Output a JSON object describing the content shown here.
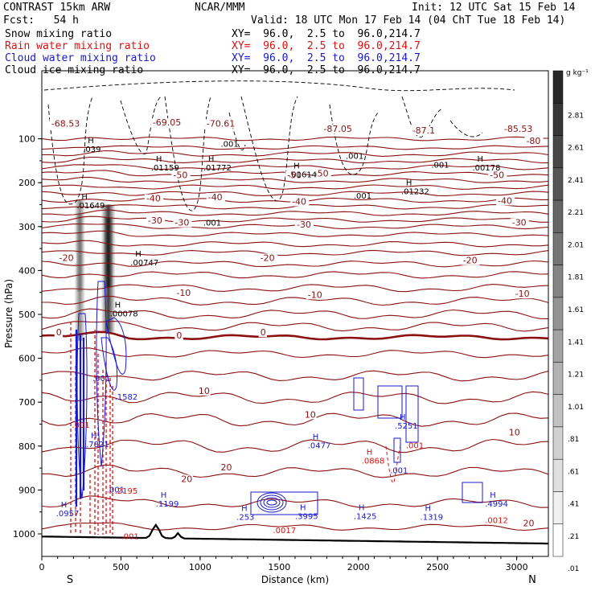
{
  "header": {
    "model": "CONTRAST 15km ARW",
    "forecast": "Fcst:   54 h",
    "org": "NCAR/MMM",
    "init": "Init: 12 UTC Sat 15 Feb 14",
    "valid": "Valid: 18 UTC Mon 17 Feb 14 (04 ChT Tue 18 Feb 14)"
  },
  "fields": [
    {
      "label": "Snow mixing ratio",
      "xy": "XY=  96.0,  2.5 to  96.0,214.7",
      "color": "#000000"
    },
    {
      "label": "Rain water mixing ratio",
      "xy": "XY=  96.0,  2.5 to  96.0,214.7",
      "color": "#e01010"
    },
    {
      "label": "Cloud water mixing ratio",
      "xy": "XY=  96.0,  2.5 to  96.0,214.7",
      "color": "#1818d0"
    },
    {
      "label": "Cloud ice mixing ratio",
      "xy": "XY=  96.0,  2.5 to  96.0,214.7",
      "color": "#000000"
    }
  ],
  "chart_data": {
    "type": "contour-cross-section",
    "ylabel": "Pressure (hPa)",
    "xlabel": "Distance (km)",
    "x_ticks": [
      0,
      500,
      1000,
      1500,
      2000,
      2500,
      3000
    ],
    "y_ticks": [
      100,
      200,
      300,
      400,
      500,
      600,
      700,
      800,
      900,
      1000
    ],
    "xlim": [
      0,
      3200
    ],
    "ylim_pressure": [
      50,
      1040
    ],
    "x_endpoints": {
      "left": "S",
      "right": "N"
    },
    "colorbar": {
      "unit": "g kg⁻¹",
      "labels": [
        "2.81",
        "2.61",
        "2.41",
        "2.21",
        "2.01",
        "1.81",
        "1.61",
        "1.41",
        "1.21",
        "1.01",
        ".81",
        ".61",
        ".41",
        ".21",
        ".01"
      ]
    },
    "temperature_contour_labels": [
      {
        "t": "-68.53",
        "x": 60,
        "p": 72
      },
      {
        "t": "-69.05",
        "x": 700,
        "p": 70
      },
      {
        "t": "-70.61",
        "x": 1040,
        "p": 72
      },
      {
        "t": "-87.05",
        "x": 1780,
        "p": 84
      },
      {
        "t": "-87.1",
        "x": 2340,
        "p": 88
      },
      {
        "t": "-85.53",
        "x": 2920,
        "p": 84
      },
      {
        "t": "-80",
        "x": 3060,
        "p": 112
      },
      {
        "t": "-50",
        "x": 830,
        "p": 190
      },
      {
        "t": "-50",
        "x": 1550,
        "p": 190
      },
      {
        "t": "-50",
        "x": 1720,
        "p": 186
      },
      {
        "t": "-50",
        "x": 2830,
        "p": 190
      },
      {
        "t": "-40",
        "x": 660,
        "p": 243
      },
      {
        "t": "-40",
        "x": 1050,
        "p": 240
      },
      {
        "t": "-40",
        "x": 1580,
        "p": 250
      },
      {
        "t": "-40",
        "x": 2880,
        "p": 248
      },
      {
        "t": "-30",
        "x": 670,
        "p": 293
      },
      {
        "t": "-30",
        "x": 840,
        "p": 298
      },
      {
        "t": "-30",
        "x": 1610,
        "p": 302
      },
      {
        "t": "-30",
        "x": 2970,
        "p": 298
      },
      {
        "t": "-20",
        "x": 110,
        "p": 378
      },
      {
        "t": "-20",
        "x": 1380,
        "p": 378
      },
      {
        "t": "-20",
        "x": 2660,
        "p": 384
      },
      {
        "t": "-10",
        "x": 850,
        "p": 458
      },
      {
        "t": "-10",
        "x": 1680,
        "p": 462
      },
      {
        "t": "-10",
        "x": 2990,
        "p": 460
      },
      {
        "t": "0",
        "x": 90,
        "p": 548
      },
      {
        "t": "0",
        "x": 850,
        "p": 555
      },
      {
        "t": "0",
        "x": 1380,
        "p": 548
      },
      {
        "t": "10",
        "x": 990,
        "p": 681
      },
      {
        "t": "10",
        "x": 1660,
        "p": 735
      },
      {
        "t": "10",
        "x": 2950,
        "p": 776
      },
      {
        "t": "20",
        "x": 880,
        "p": 882
      },
      {
        "t": "20",
        "x": 1130,
        "p": 855
      },
      {
        "t": "20",
        "x": 3040,
        "p": 983
      }
    ],
    "extrema_labels": [
      {
        "mark": "H",
        "v": ".039",
        "x": 260,
        "p": 130,
        "color": "#000000"
      },
      {
        "mark": "H",
        "v": ".01159",
        "x": 690,
        "p": 172,
        "color": "#000000"
      },
      {
        "mark": "H",
        "v": ".01772",
        "x": 1020,
        "p": 172,
        "color": "#000000"
      },
      {
        "mark": "",
        "v": ".001",
        "x": 1130,
        "p": 118,
        "color": "#000000"
      },
      {
        "mark": "H",
        "v": ".01614",
        "x": 1560,
        "p": 188,
        "color": "#000000"
      },
      {
        "mark": "",
        "v": ".001",
        "x": 1920,
        "p": 146,
        "color": "#000000"
      },
      {
        "mark": "",
        "v": ".001",
        "x": 2460,
        "p": 166,
        "color": "#000000"
      },
      {
        "mark": "H",
        "v": ".00178",
        "x": 2720,
        "p": 172,
        "color": "#000000"
      },
      {
        "mark": "H",
        "v": ".01232",
        "x": 2270,
        "p": 226,
        "color": "#000000"
      },
      {
        "mark": "",
        "v": ".001",
        "x": 1970,
        "p": 236,
        "color": "#000000"
      },
      {
        "mark": "",
        "v": ".001",
        "x": 1020,
        "p": 298,
        "color": "#000000"
      },
      {
        "mark": "H",
        "v": ".01649",
        "x": 220,
        "p": 258,
        "color": "#000000"
      },
      {
        "mark": "H",
        "v": ".00747",
        "x": 560,
        "p": 388,
        "color": "#000000"
      },
      {
        "mark": "H",
        "v": ".00078",
        "x": 430,
        "p": 505,
        "color": "#000000"
      },
      {
        "mark": "",
        "v": ".001",
        "x": 320,
        "p": 652,
        "color": "#1818d0"
      },
      {
        "mark": "",
        "v": ".1582",
        "x": 460,
        "p": 694,
        "color": "#1818d0"
      },
      {
        "mark": "",
        "v": ".001",
        "x": 190,
        "p": 758,
        "color": "#e01010"
      },
      {
        "mark": "H",
        "v": ".7821",
        "x": 280,
        "p": 802,
        "color": "#1818d0"
      },
      {
        "mark": "",
        "v": ".001",
        "x": 410,
        "p": 906,
        "color": "#1818d0"
      },
      {
        "mark": "",
        "v": ".2195",
        "x": 460,
        "p": 908,
        "color": "#e01010"
      },
      {
        "mark": "H",
        "v": ".0957",
        "x": 90,
        "p": 960,
        "color": "#1818d0"
      },
      {
        "mark": "H",
        "v": ".1199",
        "x": 720,
        "p": 938,
        "color": "#1818d0"
      },
      {
        "mark": "H",
        "v": ".253",
        "x": 1230,
        "p": 968,
        "color": "#1818d0"
      },
      {
        "mark": "H",
        "v": ".3995",
        "x": 1600,
        "p": 966,
        "color": "#1818d0"
      },
      {
        "mark": "",
        "v": ".0017",
        "x": 1460,
        "p": 998,
        "color": "#e01010"
      },
      {
        "mark": "",
        "v": ".001",
        "x": 500,
        "p": 1012,
        "color": "#e01010"
      },
      {
        "mark": "H",
        "v": ".1425",
        "x": 1970,
        "p": 966,
        "color": "#1818d0"
      },
      {
        "mark": "H",
        "v": ".1319",
        "x": 2390,
        "p": 968,
        "color": "#1818d0"
      },
      {
        "mark": "H",
        "v": ".4994",
        "x": 2800,
        "p": 938,
        "color": "#1818d0"
      },
      {
        "mark": "",
        "v": ".0012",
        "x": 2800,
        "p": 975,
        "color": "#e01010"
      },
      {
        "mark": "H",
        "v": ".0477",
        "x": 1680,
        "p": 805,
        "color": "#1818d0"
      },
      {
        "mark": "H",
        "v": ".0868",
        "x": 2020,
        "p": 840,
        "color": "#e01010"
      },
      {
        "mark": "H",
        "v": ".5251",
        "x": 2230,
        "p": 760,
        "color": "#1818d0"
      },
      {
        "mark": "",
        "v": ".001",
        "x": 2300,
        "p": 805,
        "color": "#e01010"
      },
      {
        "mark": "",
        "v": ".001",
        "x": 2200,
        "p": 862,
        "color": "#1818d0"
      }
    ],
    "snow_columns_x_km": [
      240,
      420
    ],
    "surface_mountains_x_km": [
      720,
      860
    ]
  }
}
